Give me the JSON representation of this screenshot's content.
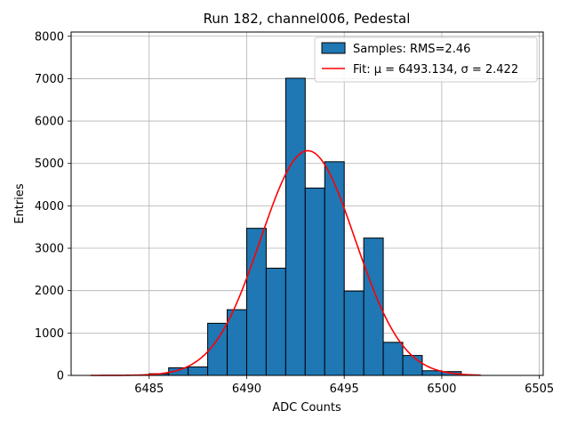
{
  "chart_data": {
    "type": "bar",
    "title": "Run 182, channel006, Pedestal",
    "xlabel": "ADC Counts",
    "ylabel": "Entries",
    "xlim": [
      6481,
      6505.2
    ],
    "ylim": [
      0,
      8100
    ],
    "xticks": [
      6485,
      6490,
      6495,
      6500,
      6505
    ],
    "yticks": [
      0,
      1000,
      2000,
      3000,
      4000,
      5000,
      6000,
      7000,
      8000
    ],
    "grid": true,
    "legend_position": "top-right",
    "bins": {
      "edges": [
        6485,
        6486,
        6487,
        6488,
        6489,
        6490,
        6491,
        6492,
        6493,
        6494,
        6495,
        6496,
        6497,
        6498,
        6499,
        6500,
        6501
      ],
      "counts": [
        40,
        180,
        200,
        1230,
        1550,
        3470,
        2530,
        7010,
        4420,
        5040,
        1990,
        3240,
        780,
        470,
        110,
        90
      ]
    },
    "series": [
      {
        "name": "Samples: RMS=2.46",
        "kind": "histogram",
        "color": "#1f77b4",
        "edgecolor": "#000000"
      },
      {
        "name": "Fit: μ = 6493.134, σ = 2.422",
        "kind": "gaussian-fit",
        "color": "#ff0000",
        "mu": 6493.134,
        "sigma": 2.422,
        "amplitude": 5300,
        "x_range": [
          6482,
          6502
        ]
      }
    ]
  }
}
